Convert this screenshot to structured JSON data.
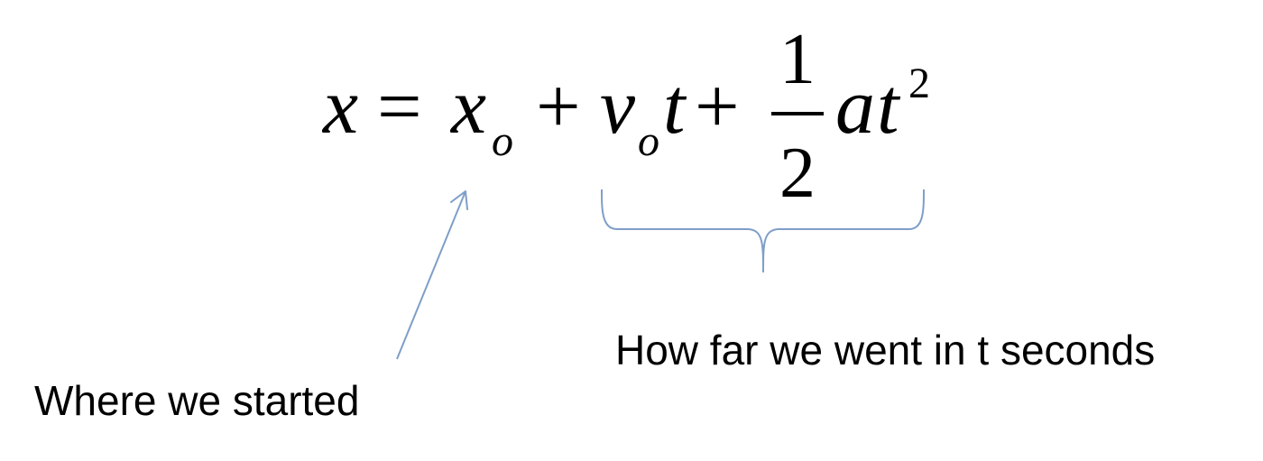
{
  "equation": {
    "lhs": "x",
    "equals": "=",
    "x_symbol": "x",
    "x_subscript": "o",
    "plus1": "+",
    "v_symbol": "v",
    "v_subscript": "o",
    "t_symbol": "t",
    "plus2": "+",
    "fraction_numerator": "1",
    "fraction_denominator": "2",
    "a_symbol": "a",
    "t2_symbol": "t",
    "t2_exponent": "2"
  },
  "annotations": {
    "start_label": "Where we started",
    "distance_label": "How far we went in t seconds"
  },
  "colors": {
    "annotation_line": "#7f9ec8",
    "text": "#000000",
    "background": "#ffffff"
  }
}
